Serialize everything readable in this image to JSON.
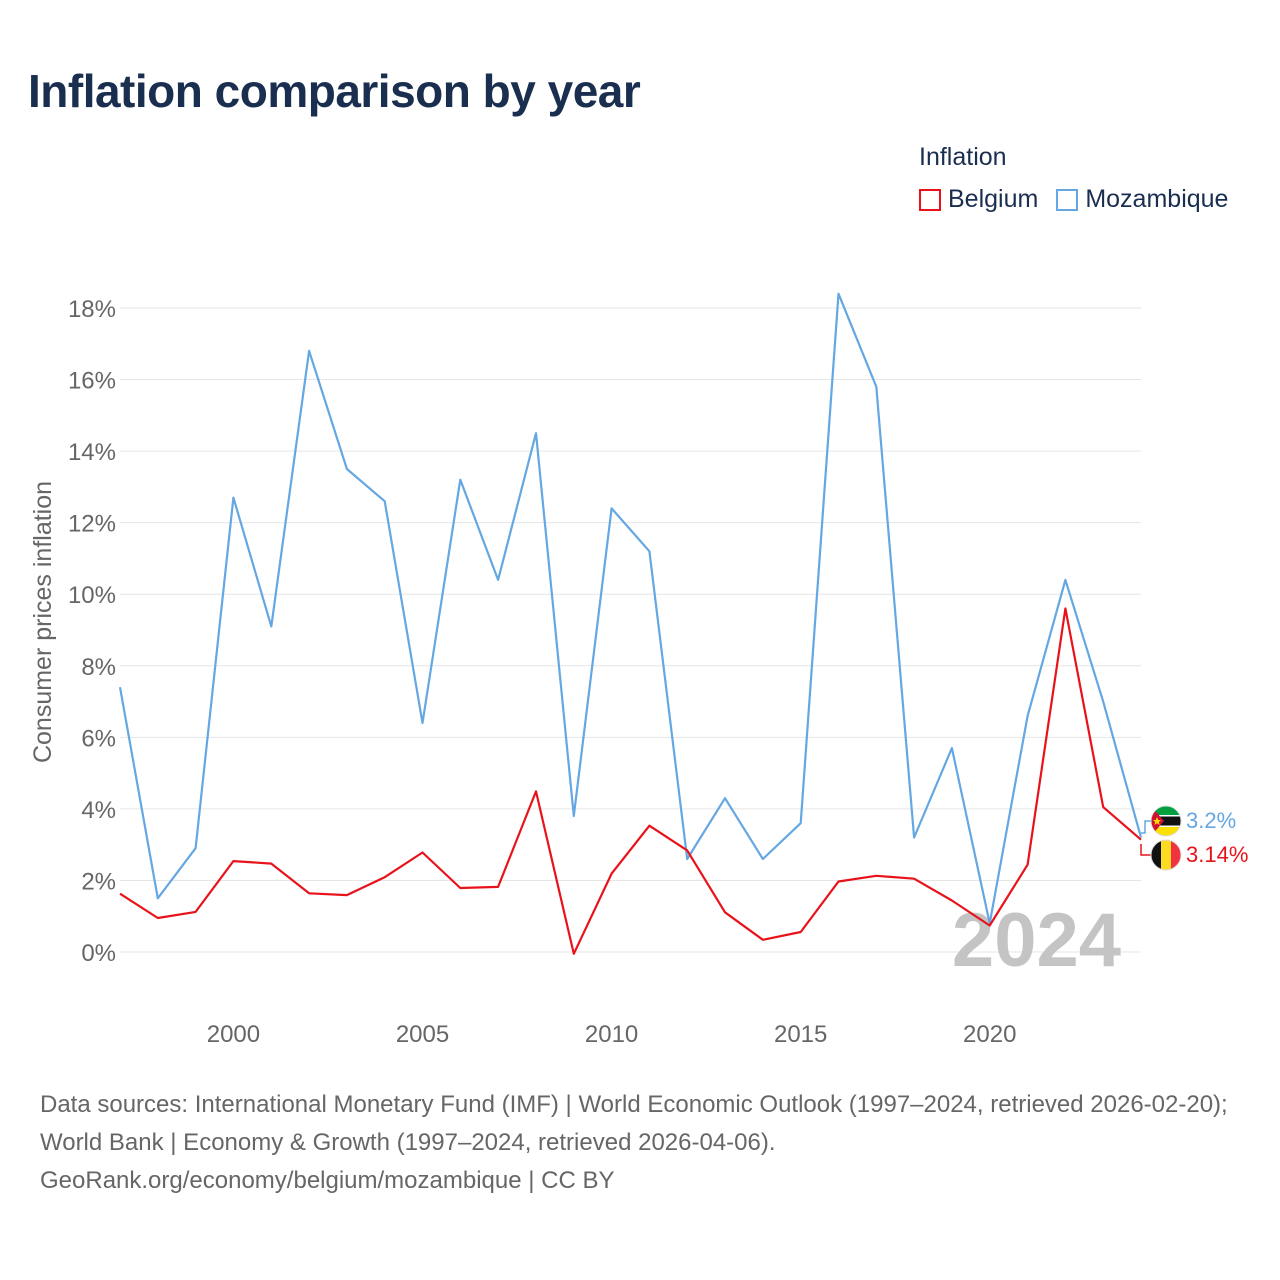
{
  "title": "Inflation comparison by year",
  "legend": {
    "title": "Inflation",
    "items": [
      {
        "label": "Belgium",
        "color": "#e8131a"
      },
      {
        "label": "Mozambique",
        "color": "#64a7e2"
      }
    ]
  },
  "chart_data": {
    "type": "line",
    "title": "Inflation comparison by year",
    "xlabel": "",
    "ylabel": "Consumer prices inflation",
    "xlim": [
      1997,
      2024
    ],
    "ylim": [
      0,
      18
    ],
    "xticks": [
      2000,
      2005,
      2010,
      2015,
      2020
    ],
    "xtick_labels": [
      "2000",
      "2005",
      "2010",
      "2015",
      "2020"
    ],
    "yticks": [
      0,
      2,
      4,
      6,
      8,
      10,
      12,
      14,
      16,
      18
    ],
    "ytick_labels": [
      "0%",
      "2%",
      "4%",
      "6%",
      "8%",
      "10%",
      "12%",
      "14%",
      "16%",
      "18%"
    ],
    "grid": true,
    "x": [
      1997,
      1998,
      1999,
      2000,
      2001,
      2002,
      2003,
      2004,
      2005,
      2006,
      2007,
      2008,
      2009,
      2010,
      2011,
      2012,
      2013,
      2014,
      2015,
      2016,
      2017,
      2018,
      2019,
      2020,
      2021,
      2022,
      2023,
      2024
    ],
    "series": [
      {
        "name": "Belgium",
        "color": "#e8131a",
        "values": [
          1.63,
          0.95,
          1.12,
          2.54,
          2.47,
          1.64,
          1.59,
          2.09,
          2.78,
          1.79,
          1.82,
          4.49,
          -0.05,
          2.19,
          3.53,
          2.84,
          1.11,
          0.34,
          0.56,
          1.97,
          2.13,
          2.05,
          1.44,
          0.74,
          2.44,
          9.6,
          4.05,
          3.14
        ]
      },
      {
        "name": "Mozambique",
        "color": "#64a7e2",
        "values": [
          7.4,
          1.5,
          2.9,
          12.7,
          9.1,
          16.8,
          13.5,
          12.6,
          6.4,
          13.2,
          10.4,
          14.5,
          3.8,
          12.4,
          11.2,
          2.6,
          4.3,
          2.6,
          3.6,
          18.4,
          15.8,
          3.2,
          5.7,
          0.8,
          6.6,
          10.4,
          7.0,
          3.2
        ]
      }
    ],
    "end_labels": [
      {
        "series": "Mozambique",
        "text": "3.2%"
      },
      {
        "series": "Belgium",
        "text": "3.14%"
      }
    ],
    "year_watermark": "2024"
  },
  "source_text": "Data sources: International Monetary Fund (IMF) | World Economic Outlook (1997–2024, retrieved 2026-02-20); World Bank | Economy & Growth (1997–2024, retrieved 2026-04-06).",
  "source_link": "GeoRank.org/economy/belgium/mozambique | CC BY"
}
